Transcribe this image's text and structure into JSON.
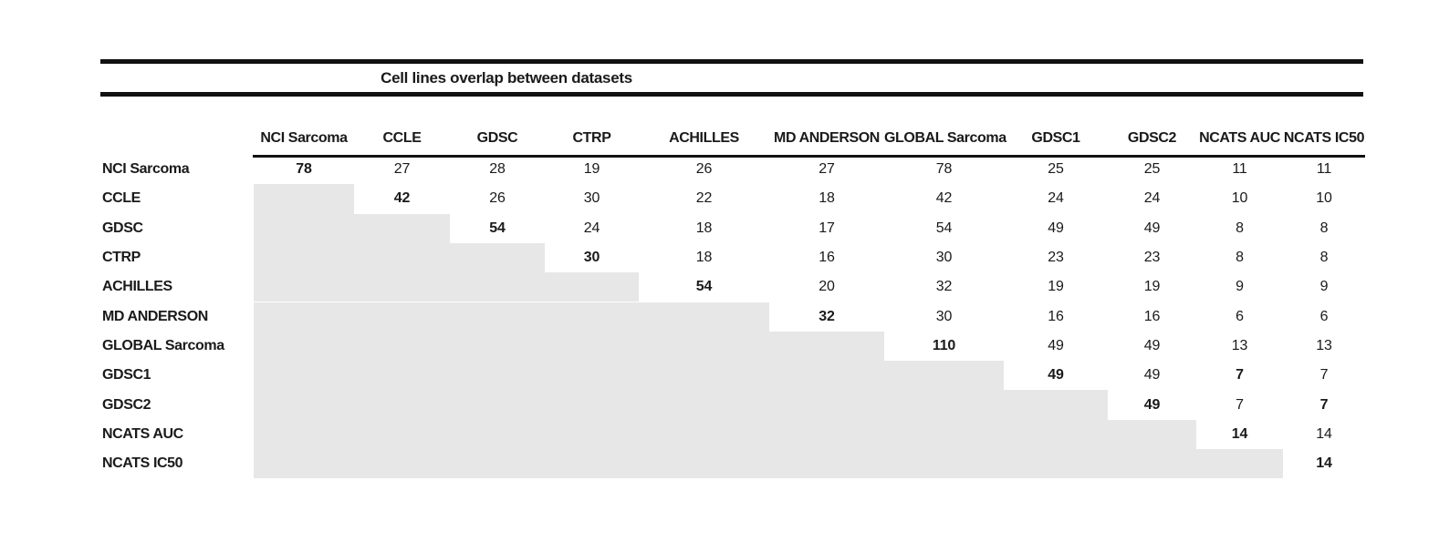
{
  "title": "Cell lines overlap between datasets",
  "chart_data": {
    "type": "table",
    "title": "Cell lines overlap between datasets",
    "columns": [
      "NCI Sarcoma",
      "CCLE",
      "GDSC",
      "CTRP",
      "ACHILLES",
      "MD ANDERSON",
      "GLOBAL Sarcoma",
      "GDSC1",
      "GDSC2",
      "NCATS AUC",
      "NCATS IC50"
    ],
    "row_labels": [
      "NCI Sarcoma",
      "CCLE",
      "GDSC",
      "CTRP",
      "ACHILLES",
      "MD ANDERSON",
      "GLOBAL Sarcoma",
      "GDSC1",
      "GDSC2",
      "NCATS AUC",
      "NCATS IC50"
    ],
    "cells": [
      [
        "78",
        "27",
        "28",
        "19",
        "26",
        "27",
        "78",
        "25",
        "25",
        "11",
        "11"
      ],
      [
        null,
        "42",
        "26",
        "30",
        "22",
        "18",
        "42",
        "24",
        "24",
        "10",
        "10"
      ],
      [
        null,
        null,
        "54",
        "24",
        "18",
        "17",
        "54",
        "49",
        "49",
        "8",
        "8"
      ],
      [
        null,
        null,
        null,
        "30",
        "18",
        "16",
        "30",
        "23",
        "23",
        "8",
        "8"
      ],
      [
        null,
        null,
        null,
        null,
        "54",
        "20",
        "32",
        "19",
        "19",
        "9",
        "9"
      ],
      [
        null,
        null,
        null,
        null,
        null,
        "32",
        "30",
        "16",
        "16",
        "6",
        "6"
      ],
      [
        null,
        null,
        null,
        null,
        null,
        null,
        "110",
        "49",
        "49",
        "13",
        "13"
      ],
      [
        null,
        null,
        null,
        null,
        null,
        null,
        null,
        "49",
        "49",
        "7",
        "7"
      ],
      [
        null,
        null,
        null,
        null,
        null,
        null,
        null,
        null,
        "49",
        "7",
        "7"
      ],
      [
        null,
        null,
        null,
        null,
        null,
        null,
        null,
        null,
        null,
        "14",
        "14"
      ],
      [
        null,
        null,
        null,
        null,
        null,
        null,
        null,
        null,
        null,
        null,
        "14"
      ]
    ],
    "bold_cells": [
      [
        0,
        0
      ],
      [
        1,
        1
      ],
      [
        2,
        2
      ],
      [
        3,
        3
      ],
      [
        4,
        4
      ],
      [
        5,
        5
      ],
      [
        6,
        6
      ],
      [
        7,
        7
      ],
      [
        8,
        8
      ],
      [
        9,
        9
      ],
      [
        10,
        10
      ],
      [
        7,
        9
      ],
      [
        8,
        10
      ]
    ]
  },
  "colors": {
    "rule": "#111111",
    "text": "#1a1a1a",
    "empty_cell_gray": "#e7e7e7",
    "background": "#ffffff"
  }
}
